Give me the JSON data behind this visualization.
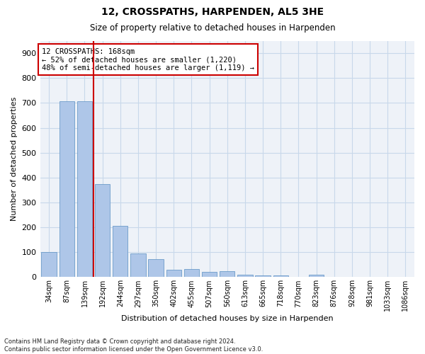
{
  "title": "12, CROSSPATHS, HARPENDEN, AL5 3HE",
  "subtitle": "Size of property relative to detached houses in Harpenden",
  "xlabel": "Distribution of detached houses by size in Harpenden",
  "ylabel": "Number of detached properties",
  "bar_labels": [
    "34sqm",
    "87sqm",
    "139sqm",
    "192sqm",
    "244sqm",
    "297sqm",
    "350sqm",
    "402sqm",
    "455sqm",
    "507sqm",
    "560sqm",
    "613sqm",
    "665sqm",
    "718sqm",
    "770sqm",
    "823sqm",
    "876sqm",
    "928sqm",
    "981sqm",
    "1033sqm",
    "1086sqm"
  ],
  "bar_values": [
    100,
    707,
    707,
    375,
    207,
    95,
    72,
    30,
    33,
    22,
    23,
    10,
    8,
    8,
    0,
    10,
    0,
    0,
    0,
    0,
    0
  ],
  "bar_color": "#aec6e8",
  "bar_edge_color": "#5a8fc2",
  "vline_x": 2.5,
  "vline_color": "#cc0000",
  "annotation_line1": "12 CROSSPATHS: 168sqm",
  "annotation_line2": "← 52% of detached houses are smaller (1,220)",
  "annotation_line3": "48% of semi-detached houses are larger (1,119) →",
  "annotation_box_color": "#cc0000",
  "grid_color": "#c8d8ea",
  "background_color": "#eef2f8",
  "footer_text": "Contains HM Land Registry data © Crown copyright and database right 2024.\nContains public sector information licensed under the Open Government Licence v3.0.",
  "ylim": [
    0,
    950
  ],
  "yticks": [
    0,
    100,
    200,
    300,
    400,
    500,
    600,
    700,
    800,
    900
  ]
}
